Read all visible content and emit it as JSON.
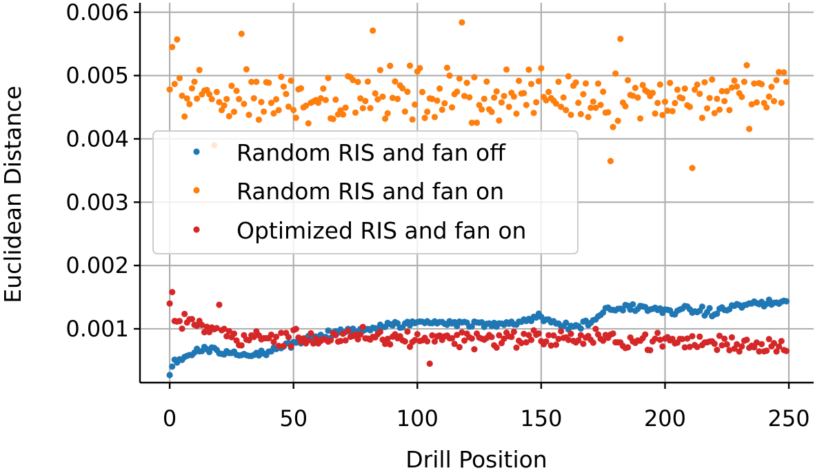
{
  "chart_data": {
    "type": "scatter",
    "title": "",
    "xlabel": "Drill Position",
    "ylabel": "Euclidean Distance",
    "xlim": [
      -12,
      260
    ],
    "ylim": [
      0.00015,
      0.00615
    ],
    "xticks": [
      0,
      50,
      100,
      150,
      200,
      250
    ],
    "yticks": [
      0.001,
      0.002,
      0.003,
      0.004,
      0.005,
      0.006
    ],
    "xtick_labels": [
      "0",
      "50",
      "100",
      "150",
      "200",
      "250"
    ],
    "ytick_labels": [
      "0.001",
      "0.002",
      "0.003",
      "0.004",
      "0.005",
      "0.006"
    ],
    "grid": true,
    "legend_position": "center-left",
    "x_range": [
      0,
      249
    ],
    "series": [
      {
        "name": "Random RIS and fan off",
        "color": "#1f77b4",
        "summary": "rises from ~0.0003 at position 0 to ~0.0014 at position 249",
        "anchors": [
          [
            0,
            0.0003
          ],
          [
            2,
            0.00048
          ],
          [
            8,
            0.0006
          ],
          [
            15,
            0.0007
          ],
          [
            20,
            0.00065
          ],
          [
            30,
            0.00058
          ],
          [
            40,
            0.00062
          ],
          [
            50,
            0.00078
          ],
          [
            60,
            0.00088
          ],
          [
            70,
            0.00095
          ],
          [
            80,
            0.001
          ],
          [
            90,
            0.00105
          ],
          [
            100,
            0.0011
          ],
          [
            110,
            0.00112
          ],
          [
            120,
            0.00108
          ],
          [
            130,
            0.00106
          ],
          [
            140,
            0.00112
          ],
          [
            150,
            0.00118
          ],
          [
            160,
            0.00103
          ],
          [
            170,
            0.00108
          ],
          [
            175,
            0.00128
          ],
          [
            185,
            0.00135
          ],
          [
            200,
            0.00128
          ],
          [
            210,
            0.0013
          ],
          [
            220,
            0.00125
          ],
          [
            230,
            0.00138
          ],
          [
            249,
            0.00142
          ]
        ]
      },
      {
        "name": "Random RIS and fan on",
        "color": "#ff7f0e",
        "summary": "scattered between ~0.0035 and ~0.0058 around a mean of ~0.0047",
        "anchors": [
          [
            0,
            0.00478
          ],
          [
            1,
            0.00545
          ],
          [
            3,
            0.00557
          ],
          [
            29,
            0.00566
          ],
          [
            82,
            0.00571
          ],
          [
            118,
            0.00584
          ],
          [
            182,
            0.00558
          ],
          [
            211,
            0.00354
          ],
          [
            178,
            0.00365
          ],
          [
            18,
            0.0039
          ],
          [
            249,
            0.0049
          ]
        ]
      },
      {
        "name": "Optimized RIS and fan on",
        "color": "#d62728",
        "summary": "starts ~0.0015 then settles around ~0.0008, ending ~0.00065",
        "anchors": [
          [
            0,
            0.0014
          ],
          [
            1,
            0.00158
          ],
          [
            5,
            0.00125
          ],
          [
            20,
            0.00138
          ],
          [
            30,
            0.00065
          ],
          [
            50,
            0.00078
          ],
          [
            70,
            0.00085
          ],
          [
            100,
            0.00088
          ],
          [
            105,
            0.00045
          ],
          [
            130,
            0.00082
          ],
          [
            150,
            0.00085
          ],
          [
            175,
            0.0008
          ],
          [
            200,
            0.00072
          ],
          [
            210,
            0.00052
          ],
          [
            230,
            0.00078
          ],
          [
            249,
            0.00065
          ]
        ]
      }
    ]
  }
}
